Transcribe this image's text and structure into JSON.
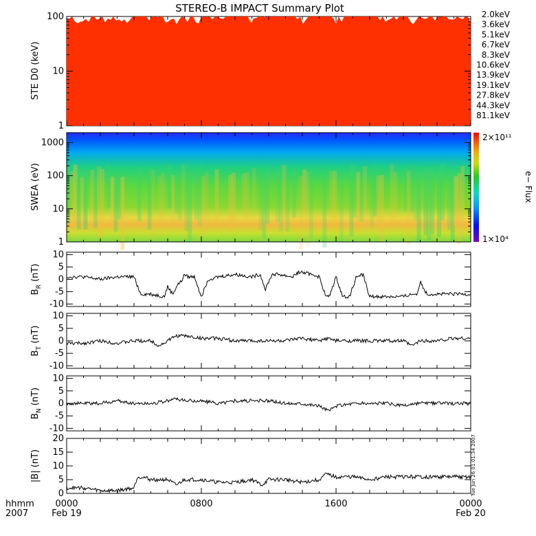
{
  "title": "STEREO-B IMPACT Summary Plot",
  "timestamp": "Tue Jun 26 01:01:34 2007",
  "time_axis": {
    "row1_label": "hhmm",
    "row2_label": "2007",
    "ticks": [
      {
        "hours": 0,
        "label": "0000",
        "date": "Feb 19"
      },
      {
        "hours": 8,
        "label": "0800",
        "date": ""
      },
      {
        "hours": 16,
        "label": "1600",
        "date": ""
      },
      {
        "hours": 24,
        "label": "0000",
        "date": "Feb 20"
      }
    ]
  },
  "colors": {
    "ste_bands": [
      "#9b30ff",
      "#4040e8",
      "#1a3cf0",
      "#00a0f0",
      "#00d8b8",
      "#20d020",
      "#00c040",
      "#c8e000",
      "#f0c000",
      "#f08800",
      "#ff3000"
    ],
    "trace": "#000000"
  },
  "chart_data": [
    {
      "type": "area",
      "panel": "ste",
      "ylabel": "STE D0 (keV)",
      "yscale": "log",
      "ylim": [
        1,
        100
      ],
      "yticks": [
        "1",
        "10",
        "100"
      ],
      "legend_position": "right",
      "series": [
        {
          "name": "2.0keV",
          "color": "#9b30ff"
        },
        {
          "name": "3.6keV",
          "color": "#4040e8"
        },
        {
          "name": "5.1keV",
          "color": "#1a3cf0"
        },
        {
          "name": "6.7keV",
          "color": "#00a0f0"
        },
        {
          "name": "8.3keV",
          "color": "#00d8b8"
        },
        {
          "name": "10.6keV",
          "color": "#20d020"
        },
        {
          "name": "13.9keV",
          "color": "#00c040"
        },
        {
          "name": "19.1keV",
          "color": "#c8e000"
        },
        {
          "name": "27.8keV",
          "color": "#f0c000"
        },
        {
          "name": "44.3keV",
          "color": "#f08800"
        },
        {
          "name": "81.1keV",
          "color": "#ff3000"
        }
      ]
    },
    {
      "type": "heatmap",
      "panel": "swea",
      "ylabel": "SWEA (eV)",
      "yscale": "log",
      "ylim": [
        1,
        2000
      ],
      "yticks": [
        "1",
        "10",
        "100",
        "1000"
      ],
      "colorbar": {
        "label": "e− Flux",
        "max": "2×10¹¹",
        "min": "1×10⁴"
      }
    },
    {
      "type": "line",
      "panel": "br",
      "ylabel": "BR (nT)",
      "ylabel_main": "B",
      "ylabel_sub": "R",
      "ylabel_unit": "(nT)",
      "ylim": [
        -11,
        11
      ],
      "yticks": [
        "10",
        "5",
        "0",
        "-5",
        "-10"
      ],
      "ytick_values": [
        10,
        5,
        0,
        -5,
        -10
      ],
      "x": [
        0,
        1,
        2,
        3,
        4,
        4.4,
        5,
        5.8,
        6,
        6.3,
        6.6,
        6.8,
        7,
        7.2,
        7.6,
        8,
        8.4,
        9,
        10,
        11,
        11.5,
        11.8,
        12.2,
        12.6,
        13.4,
        13.8,
        14.6,
        15,
        15.4,
        15.6,
        16,
        16.4,
        16.8,
        17.2,
        17.6,
        18,
        18.4,
        19,
        20,
        20.5,
        20.8,
        21,
        21.4,
        22,
        23,
        24
      ],
      "y": [
        1,
        1,
        0,
        1,
        1,
        -6,
        -6,
        -7,
        -3,
        -6,
        -2,
        -1,
        2,
        1,
        1,
        -7,
        0,
        1,
        2,
        1,
        2,
        -4,
        2,
        2,
        1,
        3,
        2,
        1,
        -7,
        -7,
        1,
        -7,
        -7,
        1,
        2,
        -7,
        -7,
        -7,
        -7,
        -6,
        -6,
        -1,
        -6,
        -6,
        -6,
        -6
      ]
    },
    {
      "type": "line",
      "panel": "bt",
      "ylabel": "BT (nT)",
      "ylabel_main": "B",
      "ylabel_sub": "T",
      "ylabel_unit": "(nT)",
      "ylim": [
        -11,
        11
      ],
      "yticks": [
        "10",
        "5",
        "0",
        "-5",
        "-10"
      ],
      "ytick_values": [
        10,
        5,
        0,
        -5,
        -10
      ],
      "x": [
        0,
        1,
        2,
        3,
        4,
        5,
        5.5,
        6,
        6.5,
        7,
        8,
        9,
        10,
        11,
        12,
        13,
        14,
        15,
        15.5,
        16,
        17,
        18,
        19,
        20,
        20.5,
        21,
        22,
        23,
        24
      ],
      "y": [
        -1,
        -1,
        0,
        -1,
        0,
        0,
        -2,
        0,
        2,
        2,
        1,
        1,
        0,
        0,
        0,
        0,
        1,
        0,
        1,
        0,
        0,
        0,
        0,
        0,
        -2,
        0,
        0,
        1,
        1
      ]
    },
    {
      "type": "line",
      "panel": "bn",
      "ylabel": "BN (nT)",
      "ylabel_main": "B",
      "ylabel_sub": "N",
      "ylabel_unit": "(nT)",
      "ylim": [
        -11,
        11
      ],
      "yticks": [
        "10",
        "5",
        "0",
        "-5",
        "-10"
      ],
      "ytick_values": [
        10,
        5,
        0,
        -5,
        -10
      ],
      "x": [
        0,
        1,
        2,
        3,
        4,
        5,
        6,
        6.5,
        7,
        8,
        9,
        10,
        11,
        12,
        13,
        14,
        15,
        15.6,
        16,
        17,
        18,
        19,
        20,
        21,
        22,
        23,
        24
      ],
      "y": [
        0,
        0,
        0,
        1,
        0,
        0,
        1,
        2,
        1,
        1,
        0,
        1,
        1,
        1,
        0,
        0,
        -1,
        -3,
        -1,
        0,
        0,
        0,
        -1,
        0,
        0,
        0,
        0
      ]
    },
    {
      "type": "line",
      "panel": "bmag",
      "ylabel": "|B| (nT)",
      "ylabel_main": "|B|",
      "ylabel_sub": "",
      "ylabel_unit": "(nT)",
      "ylim": [
        0,
        20
      ],
      "yticks": [
        "20",
        "15",
        "10",
        "5",
        "0"
      ],
      "ytick_values": [
        20,
        15,
        10,
        5,
        0
      ],
      "x": [
        0,
        1,
        2,
        3,
        4,
        4.2,
        4.5,
        5,
        6,
        6.5,
        7,
        8,
        9,
        10,
        11,
        11.6,
        12,
        13,
        14,
        15,
        15.4,
        16,
        17,
        18,
        19,
        20,
        21,
        22,
        23,
        24
      ],
      "y": [
        2,
        2,
        1,
        1,
        2,
        6,
        6,
        5,
        5,
        3,
        5,
        5,
        4,
        4,
        5,
        3,
        5,
        5,
        4,
        5,
        7,
        6,
        6,
        5,
        6,
        6,
        6,
        6,
        6,
        6
      ]
    }
  ]
}
